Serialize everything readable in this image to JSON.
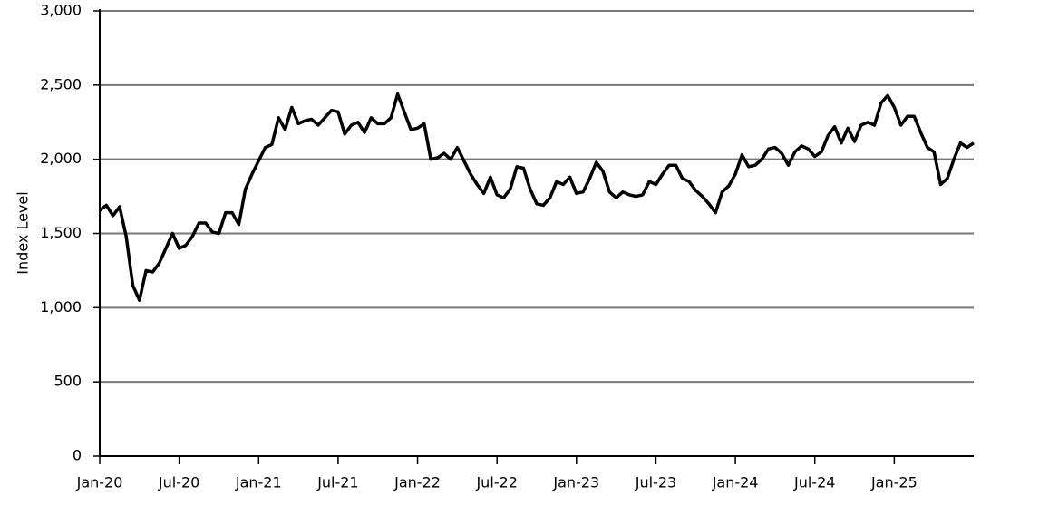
{
  "chart_data": {
    "type": "line",
    "y_label": "Index Level",
    "categories": [
      "Jan-20",
      null,
      null,
      null,
      null,
      null,
      null,
      null,
      null,
      null,
      null,
      null,
      "Jul-20",
      null,
      null,
      null,
      null,
      null,
      null,
      null,
      null,
      null,
      null,
      null,
      "Jan-21",
      null,
      null,
      null,
      null,
      null,
      null,
      null,
      null,
      null,
      null,
      null,
      "Jul-21",
      null,
      null,
      null,
      null,
      null,
      null,
      null,
      null,
      null,
      null,
      null,
      "Jan-22",
      null,
      null,
      null,
      null,
      null,
      null,
      null,
      null,
      null,
      null,
      null,
      "Jul-22",
      null,
      null,
      null,
      null,
      null,
      null,
      null,
      null,
      null,
      null,
      null,
      "Jan-23",
      null,
      null,
      null,
      null,
      null,
      null,
      null,
      null,
      null,
      null,
      null,
      "Jul-23",
      null,
      null,
      null,
      null,
      null,
      null,
      null,
      null,
      null,
      null,
      null,
      "Jan-24",
      null,
      null,
      null,
      null,
      null,
      null,
      null,
      null,
      null,
      null,
      null,
      "Jul-24",
      null,
      null,
      null,
      null,
      null,
      null,
      null,
      null,
      null,
      null,
      null,
      "Jan-25",
      null,
      null,
      null,
      null,
      null,
      null,
      null,
      null,
      null,
      null,
      null,
      null
    ],
    "series": [
      {
        "color": "#000000",
        "values": [
          1655,
          1690,
          1620,
          1680,
          1480,
          1150,
          1050,
          1250,
          1240,
          1300,
          1400,
          1500,
          1400,
          1420,
          1480,
          1570,
          1570,
          1510,
          1500,
          1640,
          1640,
          1560,
          1800,
          1900,
          1990,
          2080,
          2100,
          2280,
          2200,
          2350,
          2240,
          2260,
          2270,
          2230,
          2280,
          2330,
          2320,
          2170,
          2230,
          2250,
          2180,
          2280,
          2240,
          2240,
          2280,
          2440,
          2320,
          2200,
          2210,
          2240,
          2000,
          2010,
          2040,
          2000,
          2080,
          1990,
          1900,
          1830,
          1770,
          1880,
          1760,
          1740,
          1800,
          1950,
          1940,
          1800,
          1700,
          1690,
          1740,
          1850,
          1830,
          1880,
          1770,
          1780,
          1870,
          1980,
          1920,
          1780,
          1740,
          1780,
          1760,
          1750,
          1760,
          1850,
          1830,
          1900,
          1960,
          1960,
          1870,
          1850,
          1790,
          1750,
          1700,
          1640,
          1780,
          1820,
          1900,
          2030,
          1950,
          1960,
          2000,
          2070,
          2080,
          2040,
          1960,
          2050,
          2090,
          2070,
          2020,
          2050,
          2160,
          2220,
          2110,
          2210,
          2120,
          2230,
          2250,
          2230,
          2380,
          2430,
          2350,
          2230,
          2290,
          2290,
          2180,
          2080,
          2050,
          1830,
          1870,
          2000,
          2110,
          2080,
          2110
        ]
      }
    ],
    "ylim": [
      0,
      3000
    ],
    "yticks": [
      0,
      500,
      {
        "value": 1000,
        "label": "1,000"
      },
      {
        "value": 1500,
        "label": "1,500"
      },
      {
        "value": 2000,
        "label": "2,000"
      },
      {
        "value": 2500,
        "label": "2,500"
      },
      {
        "value": 3000,
        "label": "3,000"
      }
    ],
    "grid": true
  }
}
